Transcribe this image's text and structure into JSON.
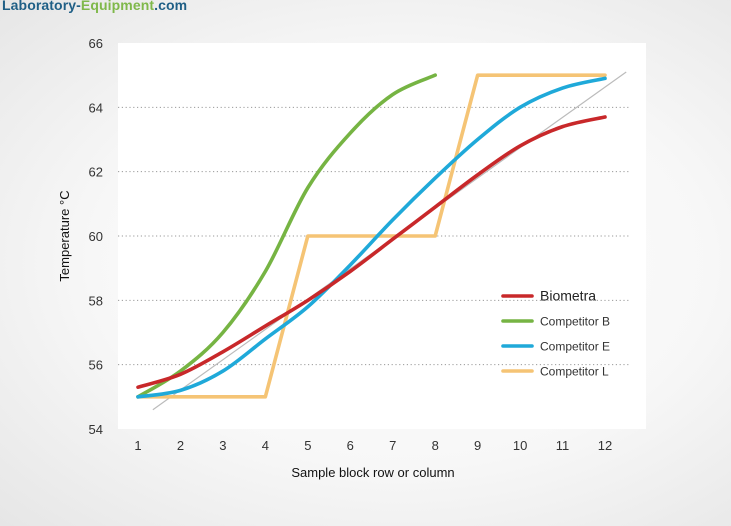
{
  "watermark": {
    "part1": "Laboratory-",
    "part2": "Equipment",
    "part3": ".com"
  },
  "chart_data": {
    "type": "line",
    "xlabel": "Sample block row or column",
    "ylabel": "Temperature °C",
    "xlim": [
      1,
      12
    ],
    "ylim": [
      54,
      66
    ],
    "x_ticks": [
      1,
      2,
      3,
      4,
      5,
      6,
      7,
      8,
      9,
      10,
      11,
      12
    ],
    "y_ticks": [
      54,
      56,
      58,
      60,
      62,
      64,
      66
    ],
    "grid": "horizontal dotted",
    "legend_position": "right-center",
    "series": [
      {
        "name": "Biometra",
        "color": "#c8282a",
        "x": [
          1,
          2,
          3,
          4,
          5,
          6,
          7,
          8,
          9,
          10,
          11,
          12
        ],
        "y": [
          55.3,
          55.7,
          56.4,
          57.2,
          58.0,
          58.9,
          59.9,
          60.9,
          61.9,
          62.8,
          63.4,
          63.7
        ]
      },
      {
        "name": "Competitor B",
        "color": "#76b443",
        "x": [
          1,
          2,
          3,
          4,
          5,
          6,
          7,
          8
        ],
        "y": [
          55.0,
          55.8,
          57.0,
          58.9,
          61.5,
          63.2,
          64.4,
          65.0
        ]
      },
      {
        "name": "Competitor E",
        "color": "#1fa9d9",
        "x": [
          1,
          2,
          3,
          4,
          5,
          6,
          7,
          8,
          9,
          10,
          11,
          12
        ],
        "y": [
          55.0,
          55.2,
          55.8,
          56.8,
          57.8,
          59.1,
          60.5,
          61.8,
          63.0,
          64.0,
          64.6,
          64.9
        ]
      },
      {
        "name": "Competitor L",
        "color": "#f5c475",
        "x": [
          1,
          4,
          5,
          8,
          9,
          12
        ],
        "y": [
          55,
          55,
          60,
          60,
          65,
          65
        ]
      }
    ],
    "reference_line": {
      "color": "#bbbbbb",
      "x": [
        1.35,
        12.5
      ],
      "y": [
        54.6,
        65.1
      ]
    }
  }
}
